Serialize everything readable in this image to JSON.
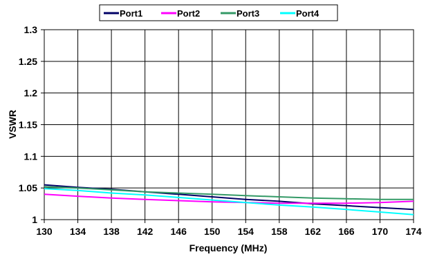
{
  "chart_data": {
    "type": "line",
    "title": "",
    "xlabel": "Frequency (MHz)",
    "ylabel": "VSWR",
    "xlim": [
      130,
      174
    ],
    "ylim": [
      1,
      1.3
    ],
    "x_ticks": [
      "130",
      "134",
      "138",
      "142",
      "146",
      "150",
      "154",
      "158",
      "162",
      "166",
      "170",
      "174"
    ],
    "y_ticks": [
      "1",
      "1.05",
      "1.1",
      "1.15",
      "1.2",
      "1.25",
      "1.3"
    ],
    "grid": true,
    "legend_position": "top-center",
    "x": [
      130,
      134,
      138,
      142,
      146,
      150,
      154,
      158,
      162,
      166,
      170,
      174
    ],
    "series": [
      {
        "name": "Port1",
        "color": "#000066",
        "values": [
          1.055,
          1.051,
          1.048,
          1.044,
          1.04,
          1.036,
          1.032,
          1.029,
          1.025,
          1.022,
          1.019,
          1.016
        ]
      },
      {
        "name": "Port2",
        "color": "#ff00ff",
        "values": [
          1.04,
          1.037,
          1.034,
          1.032,
          1.03,
          1.028,
          1.027,
          1.026,
          1.026,
          1.026,
          1.027,
          1.029
        ]
      },
      {
        "name": "Port3",
        "color": "#339966",
        "values": [
          1.052,
          1.05,
          1.047,
          1.044,
          1.042,
          1.04,
          1.038,
          1.036,
          1.034,
          1.033,
          1.032,
          1.032
        ]
      },
      {
        "name": "Port4",
        "color": "#00ffff",
        "values": [
          1.049,
          1.046,
          1.042,
          1.039,
          1.035,
          1.031,
          1.027,
          1.023,
          1.02,
          1.016,
          1.012,
          1.008
        ]
      }
    ]
  }
}
